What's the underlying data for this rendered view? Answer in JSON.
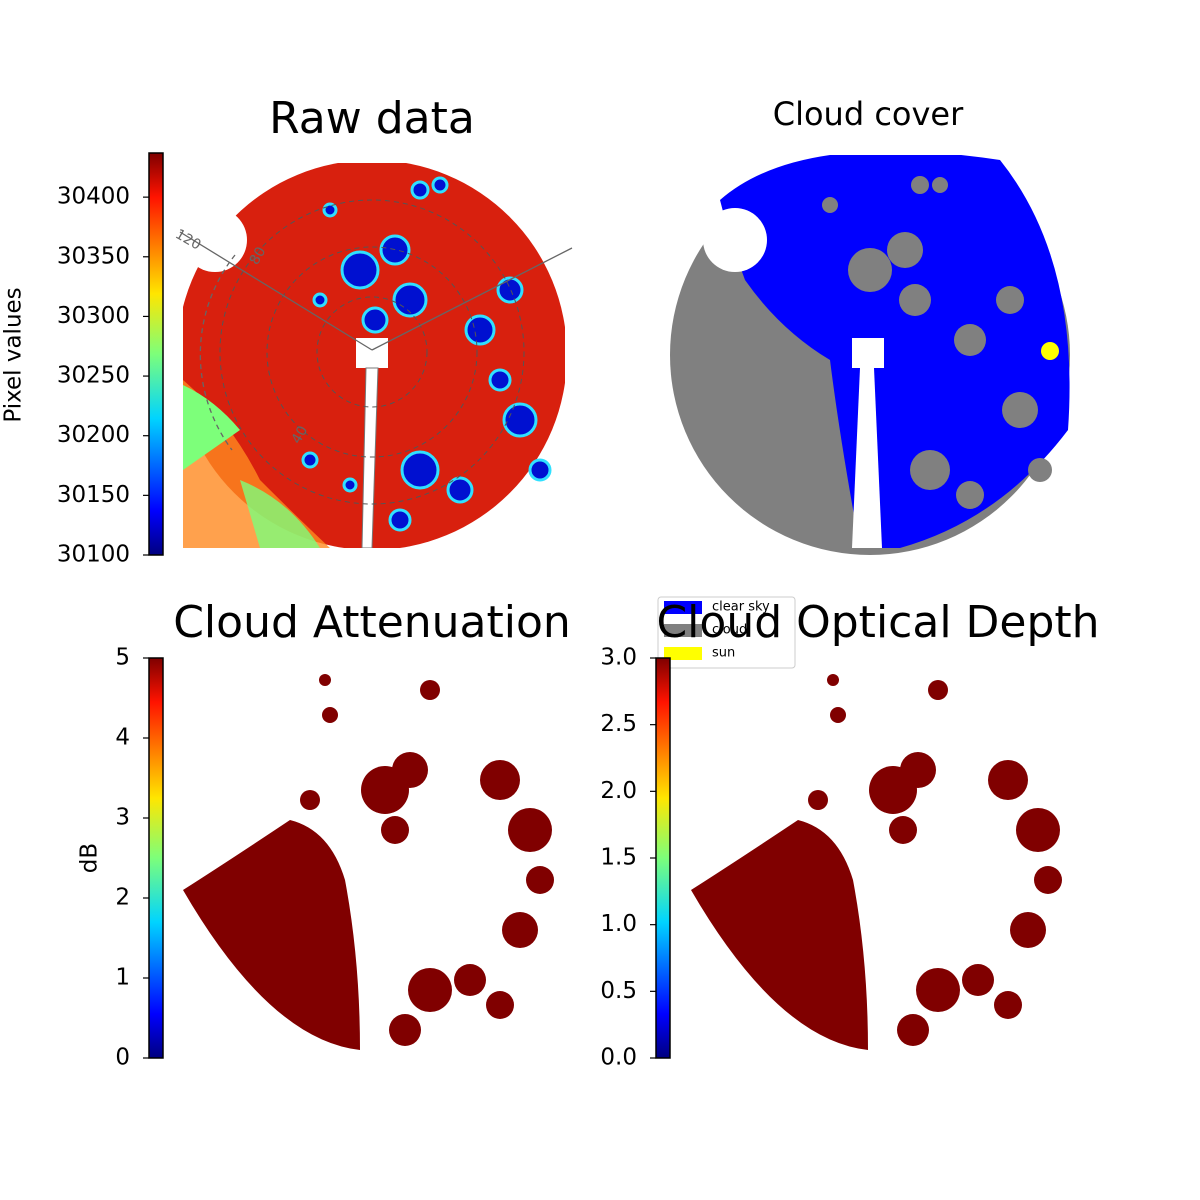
{
  "chart_data": [
    {
      "type": "image",
      "title": "Raw data",
      "annotations": [
        "120",
        "80",
        "40"
      ],
      "colorbar": {
        "label": "Pixel values",
        "colormap": "jet",
        "lim": [
          30100,
          30437
        ],
        "ticks": [
          30100,
          30150,
          30200,
          30250,
          30300,
          30350,
          30400
        ]
      }
    },
    {
      "type": "image",
      "title": "Cloud cover",
      "legend": [
        {
          "name": "clear sky",
          "color": "#0000ff"
        },
        {
          "name": "cloud",
          "color": "#808080"
        },
        {
          "name": "sun",
          "color": "#ffff00"
        }
      ]
    },
    {
      "type": "image",
      "title": "Cloud Attenuation",
      "colorbar": {
        "label": "dB",
        "colormap": "jet",
        "lim": [
          0,
          5
        ],
        "ticks": [
          0,
          1,
          2,
          3,
          4,
          5
        ]
      }
    },
    {
      "type": "image",
      "title": "Cloud Optical Depth",
      "colorbar": {
        "colormap": "jet",
        "lim": [
          0,
          3
        ],
        "ticks": [
          {
            "value": 0,
            "label": "0.0"
          },
          {
            "value": 0.5,
            "label": "0.5"
          },
          {
            "value": 1,
            "label": "1.0"
          },
          {
            "value": 1.5,
            "label": "1.5"
          },
          {
            "value": 2,
            "label": "2.0"
          },
          {
            "value": 2.5,
            "label": "2.5"
          },
          {
            "value": 3,
            "label": "3.0"
          }
        ]
      }
    }
  ]
}
